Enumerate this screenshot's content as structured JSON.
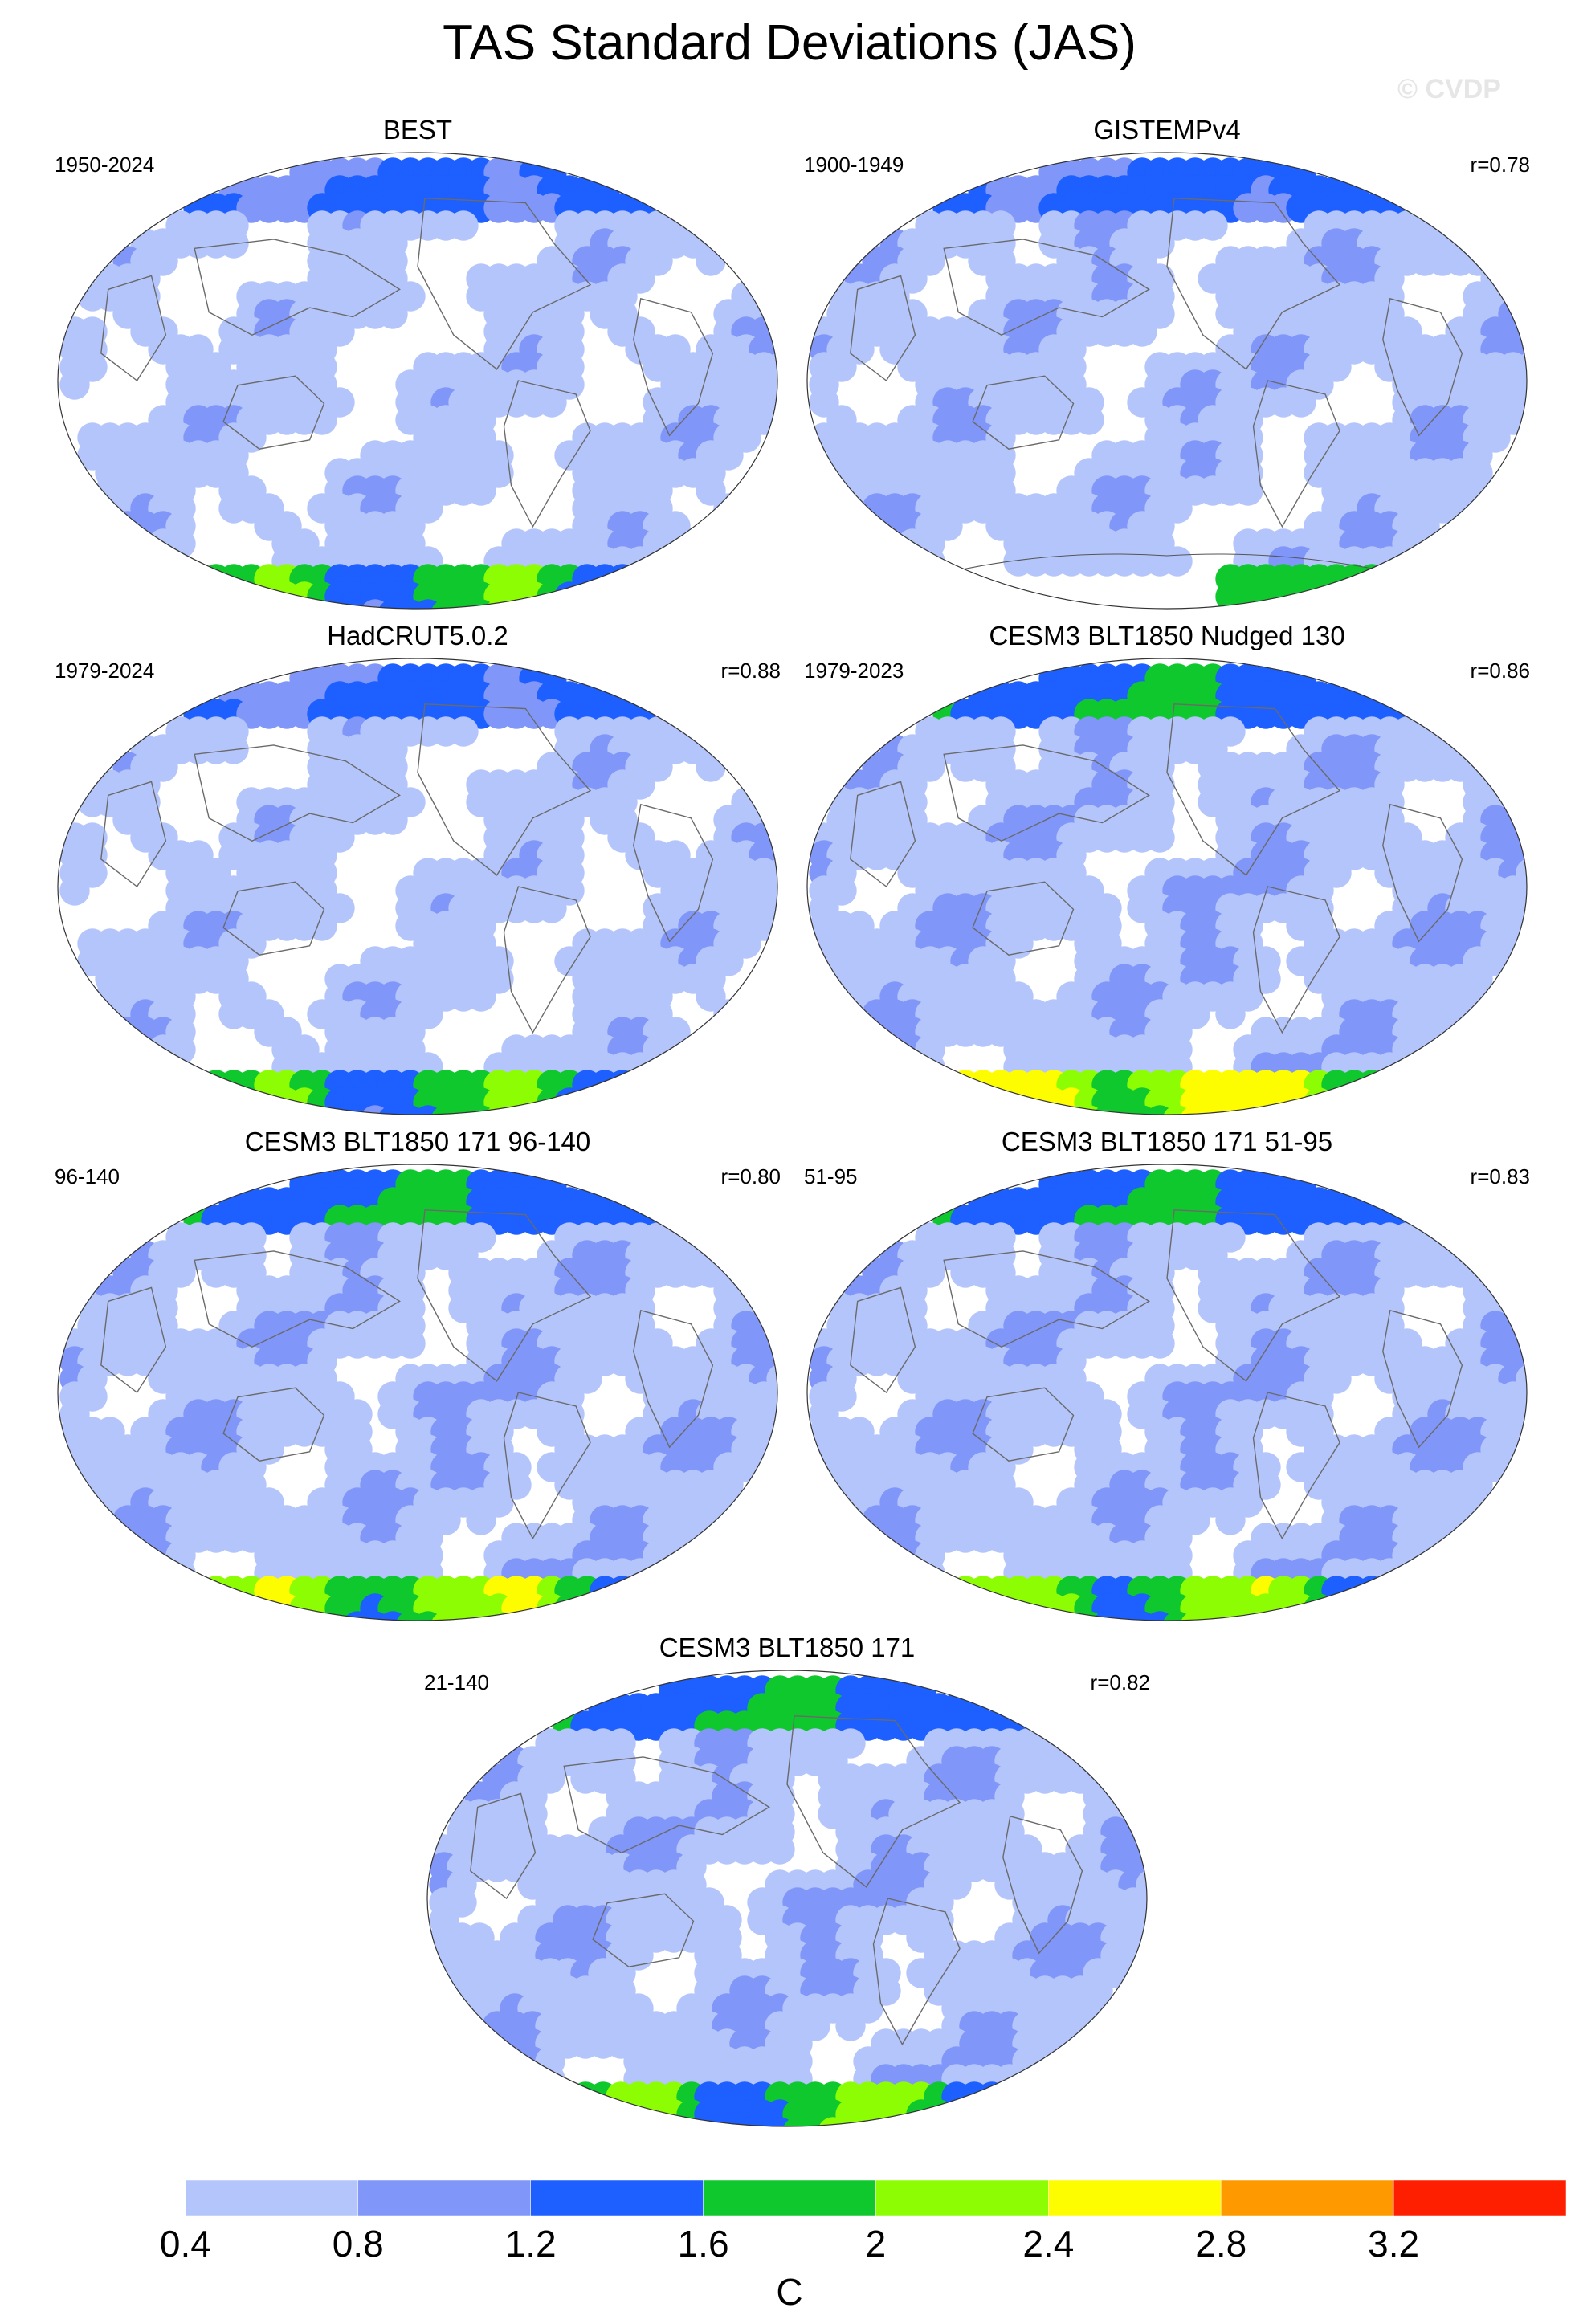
{
  "title": "TAS Standard Deviations (JAS)",
  "watermark": "© CVDP",
  "panels": [
    {
      "title": "BEST",
      "period": "1950-2024",
      "corr": "",
      "variant": "obs",
      "extra": 0.0
    },
    {
      "title": "GISTEMPv4",
      "period": "1900-1949",
      "corr": "r=0.78",
      "variant": "gistemp",
      "extra": 0.0
    },
    {
      "title": "HadCRUT5.0.2",
      "period": "1979-2024",
      "corr": "r=0.88",
      "variant": "obs",
      "extra": 0.0
    },
    {
      "title": "CESM3 BLT1850 Nudged 130",
      "period": "1979-2023",
      "corr": "r=0.86",
      "variant": "model",
      "extra": 0.4
    },
    {
      "title": "CESM3 BLT1850 171 96-140",
      "period": "96-140",
      "corr": "r=0.80",
      "variant": "model",
      "extra": 0.2
    },
    {
      "title": "CESM3 BLT1850 171 51-95",
      "period": "51-95",
      "corr": "r=0.83",
      "variant": "model",
      "extra": 0.1
    },
    {
      "title": "CESM3 BLT1850 171",
      "period": "21-140",
      "corr": "r=0.82",
      "variant": "model",
      "extra": 0.0
    }
  ],
  "colorbar": {
    "colors": [
      "#ffffff",
      "#b4c5fb",
      "#8096f8",
      "#1d5fff",
      "#0fc82d",
      "#8dfd04",
      "#fefd00",
      "#fe9a00",
      "#fe1f00"
    ],
    "tick_labels": [
      "0.4",
      "0.8",
      "1.2",
      "1.6",
      "2",
      "2.4",
      "2.8",
      "3.2"
    ],
    "label": "C"
  }
}
